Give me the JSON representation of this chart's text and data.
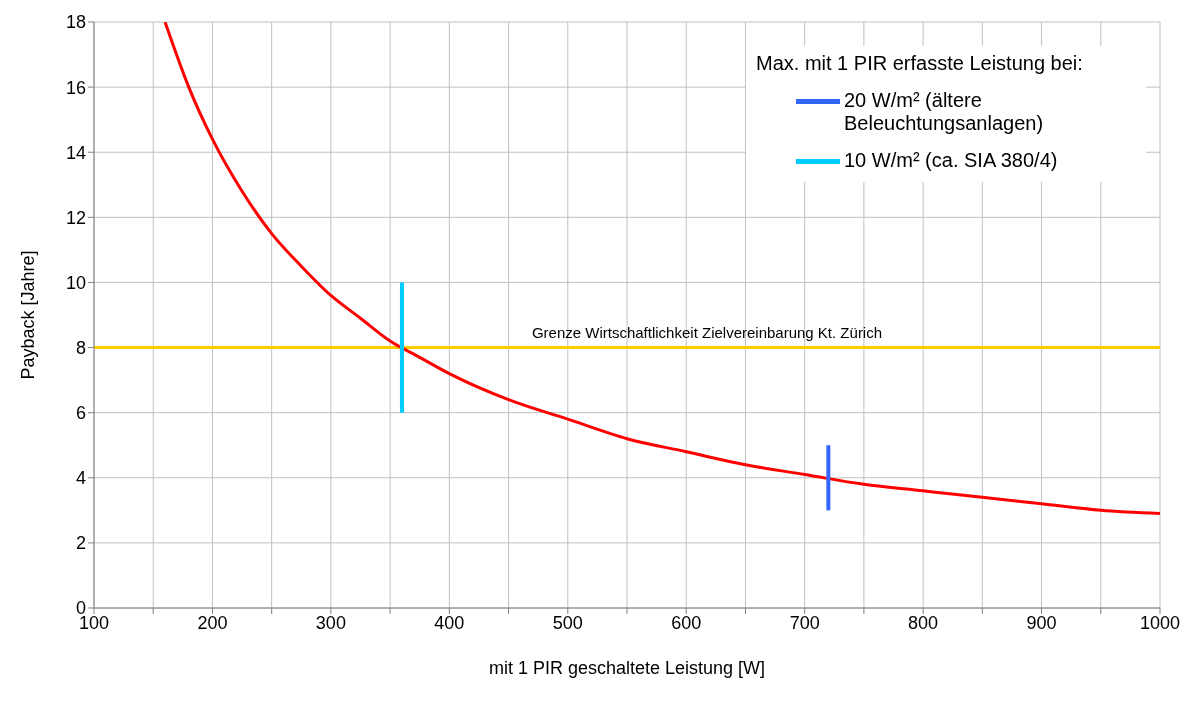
{
  "chart_data": {
    "type": "line",
    "xlabel": "mit 1 PIR geschaltete Leistung [W]",
    "ylabel": "Payback [Jahre]",
    "legend_title": "Max. mit 1 PIR erfasste Leistung bei:",
    "xlim": [
      100,
      1000
    ],
    "xticks": [
      100,
      {
        "value": 150,
        "label": null
      },
      200,
      {
        "value": 250,
        "label": null
      },
      300,
      {
        "value": 350,
        "label": null
      },
      400,
      {
        "value": 450,
        "label": null
      },
      500,
      {
        "value": 550,
        "label": null
      },
      600,
      {
        "value": 650,
        "label": null
      },
      700,
      {
        "value": 750,
        "label": null
      },
      800,
      {
        "value": 850,
        "label": null
      },
      900,
      {
        "value": 950,
        "label": null
      },
      1000
    ],
    "ylim": [
      0,
      18
    ],
    "yticks": [
      0,
      2,
      4,
      6,
      8,
      10,
      12,
      14,
      16,
      18
    ],
    "grid": true,
    "legend": "top right",
    "marker": "none",
    "line_style": "solid",
    "series": [
      {
        "color": "#ff0000",
        "x": [
          160,
          180,
          200,
          225,
          250,
          275,
          300,
          325,
          350,
          375,
          400,
          450,
          500,
          550,
          600,
          650,
          700,
          750,
          800,
          850,
          900,
          950,
          1000
        ],
        "values": [
          18,
          16,
          14.4,
          12.8,
          11.5,
          10.5,
          9.6,
          8.9,
          8.2,
          7.7,
          7.2,
          6.4,
          5.8,
          5.2,
          4.8,
          4.4,
          4.1,
          3.8,
          3.6,
          3.4,
          3.2,
          3,
          2.9
        ]
      },
      {
        "name": "20 W/m² (ältere Beleuchtungsanlagen)",
        "color": "#3366ff",
        "x": [
          720,
          720
        ],
        "values": [
          3,
          5
        ]
      },
      {
        "name": "10 W/m² (ca. SIA 380/4)",
        "color": "#00ccff",
        "x": [
          360,
          360
        ],
        "values": [
          6,
          10
        ]
      }
    ],
    "ref_lines": [
      {
        "axis": "y",
        "value": 8,
        "label": "Grenze Wirtschaftlichkeit Zielvereinbarung Kt. Zürich",
        "color": "#ffcc00"
      }
    ]
  }
}
